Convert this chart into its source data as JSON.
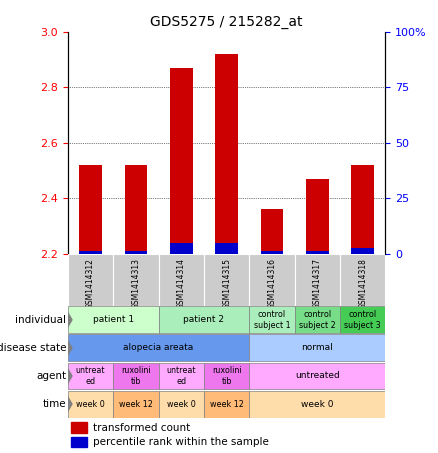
{
  "title": "GDS5275 / 215282_at",
  "samples": [
    "GSM1414312",
    "GSM1414313",
    "GSM1414314",
    "GSM1414315",
    "GSM1414316",
    "GSM1414317",
    "GSM1414318"
  ],
  "transformed_count": [
    2.52,
    2.52,
    2.87,
    2.92,
    2.36,
    2.47,
    2.52
  ],
  "percentile_rank": [
    2.21,
    2.21,
    2.24,
    2.24,
    2.21,
    2.21,
    2.22
  ],
  "bar_bottom": 2.2,
  "ylim": [
    2.2,
    3.0
  ],
  "yticks_left": [
    2.2,
    2.4,
    2.6,
    2.8,
    3.0
  ],
  "yticks_right": [
    0,
    25,
    50,
    75,
    100
  ],
  "yticks_right_labels": [
    "0",
    "25",
    "50",
    "75",
    "100%"
  ],
  "red_color": "#cc0000",
  "blue_color": "#0000cc",
  "rows": {
    "individual": {
      "label": "individual",
      "cells": [
        {
          "text": "patient 1",
          "span": [
            0,
            1
          ],
          "color": "#ccffcc"
        },
        {
          "text": "patient 2",
          "span": [
            2,
            3
          ],
          "color": "#aaeebb"
        },
        {
          "text": "control\nsubject 1",
          "span": [
            4,
            4
          ],
          "color": "#aaeebb"
        },
        {
          "text": "control\nsubject 2",
          "span": [
            5,
            5
          ],
          "color": "#77dd88"
        },
        {
          "text": "control\nsubject 3",
          "span": [
            6,
            6
          ],
          "color": "#44cc55"
        }
      ]
    },
    "disease_state": {
      "label": "disease state",
      "cells": [
        {
          "text": "alopecia areata",
          "span": [
            0,
            3
          ],
          "color": "#6699ee"
        },
        {
          "text": "normal",
          "span": [
            4,
            6
          ],
          "color": "#aaccff"
        }
      ]
    },
    "agent": {
      "label": "agent",
      "cells": [
        {
          "text": "untreat\ned",
          "span": [
            0,
            0
          ],
          "color": "#ffaaff"
        },
        {
          "text": "ruxolini\ntib",
          "span": [
            1,
            1
          ],
          "color": "#ee77ee"
        },
        {
          "text": "untreat\ned",
          "span": [
            2,
            2
          ],
          "color": "#ffaaff"
        },
        {
          "text": "ruxolini\ntib",
          "span": [
            3,
            3
          ],
          "color": "#ee77ee"
        },
        {
          "text": "untreated",
          "span": [
            4,
            6
          ],
          "color": "#ffaaff"
        }
      ]
    },
    "time": {
      "label": "time",
      "cells": [
        {
          "text": "week 0",
          "span": [
            0,
            0
          ],
          "color": "#ffddaa"
        },
        {
          "text": "week 12",
          "span": [
            1,
            1
          ],
          "color": "#ffbb77"
        },
        {
          "text": "week 0",
          "span": [
            2,
            2
          ],
          "color": "#ffddaa"
        },
        {
          "text": "week 12",
          "span": [
            3,
            3
          ],
          "color": "#ffbb77"
        },
        {
          "text": "week 0",
          "span": [
            4,
            6
          ],
          "color": "#ffddaa"
        }
      ]
    }
  },
  "sample_col_color": "#cccccc",
  "row_keys_order": [
    "individual",
    "disease_state",
    "agent",
    "time"
  ],
  "row_labels_order": [
    "individual",
    "disease state",
    "agent",
    "time"
  ]
}
